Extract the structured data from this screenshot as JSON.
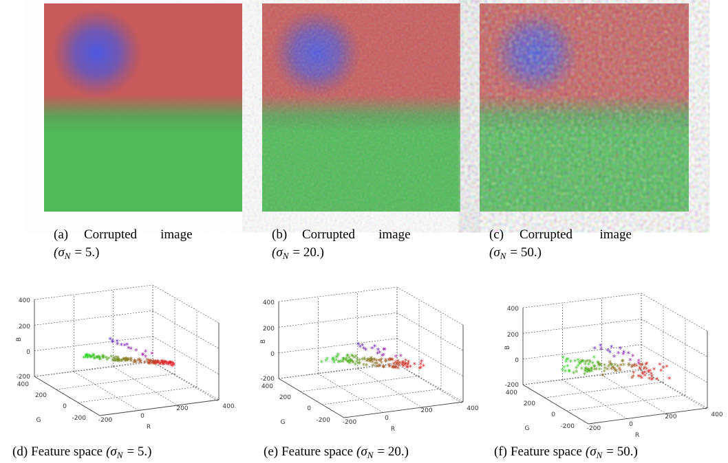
{
  "panels": [
    {
      "label": "(a)",
      "text": "Corrupted image",
      "sigma": "(σ",
      "sub": "N",
      "eq": "= 5.)"
    },
    {
      "label": "(b)",
      "text": "Corrupted image",
      "sigma": "(σ",
      "sub": "N",
      "eq": "= 20.)"
    },
    {
      "label": "(c)",
      "text": "Corrupted image",
      "sigma": "(σ",
      "sub": "N",
      "eq": "= 50.)"
    }
  ],
  "plots": [
    {
      "caption": {
        "label": "(d)",
        "text": "Feature space",
        "sigma": "(σ",
        "sub": "N",
        "eq": "= 5.)"
      },
      "b_label": "B",
      "g_label": "G",
      "r_label": "R",
      "b_ticks": [
        "400",
        "200",
        "0",
        "-200"
      ],
      "g_ticks": [
        "400",
        "200",
        "0",
        "-200"
      ],
      "r_ticks": [
        "-200",
        "0",
        "200",
        "400"
      ]
    },
    {
      "caption": {
        "label": "(e)",
        "text": "Feature space",
        "sigma": "(σ",
        "sub": "N",
        "eq": "= 20.)"
      },
      "b_label": "B",
      "g_label": "G",
      "r_label": "R",
      "b_ticks": [
        "400",
        "200",
        "0",
        "-200"
      ],
      "g_ticks": [
        "400",
        "200",
        "0",
        "-200"
      ],
      "r_ticks": [
        "-200",
        "0",
        "200",
        "400"
      ]
    },
    {
      "caption": {
        "label": "(f)",
        "text": "Feature space",
        "sigma": "(σ",
        "sub": "N",
        "eq": "= 50.)"
      },
      "b_label": "B",
      "g_label": "G",
      "r_label": "R",
      "b_ticks": [
        "400",
        "200",
        "0",
        "-200"
      ],
      "g_ticks": [
        "400",
        "200",
        "0",
        "-200"
      ],
      "r_ticks": [
        "-200",
        "0",
        "200",
        "400"
      ]
    }
  ]
}
